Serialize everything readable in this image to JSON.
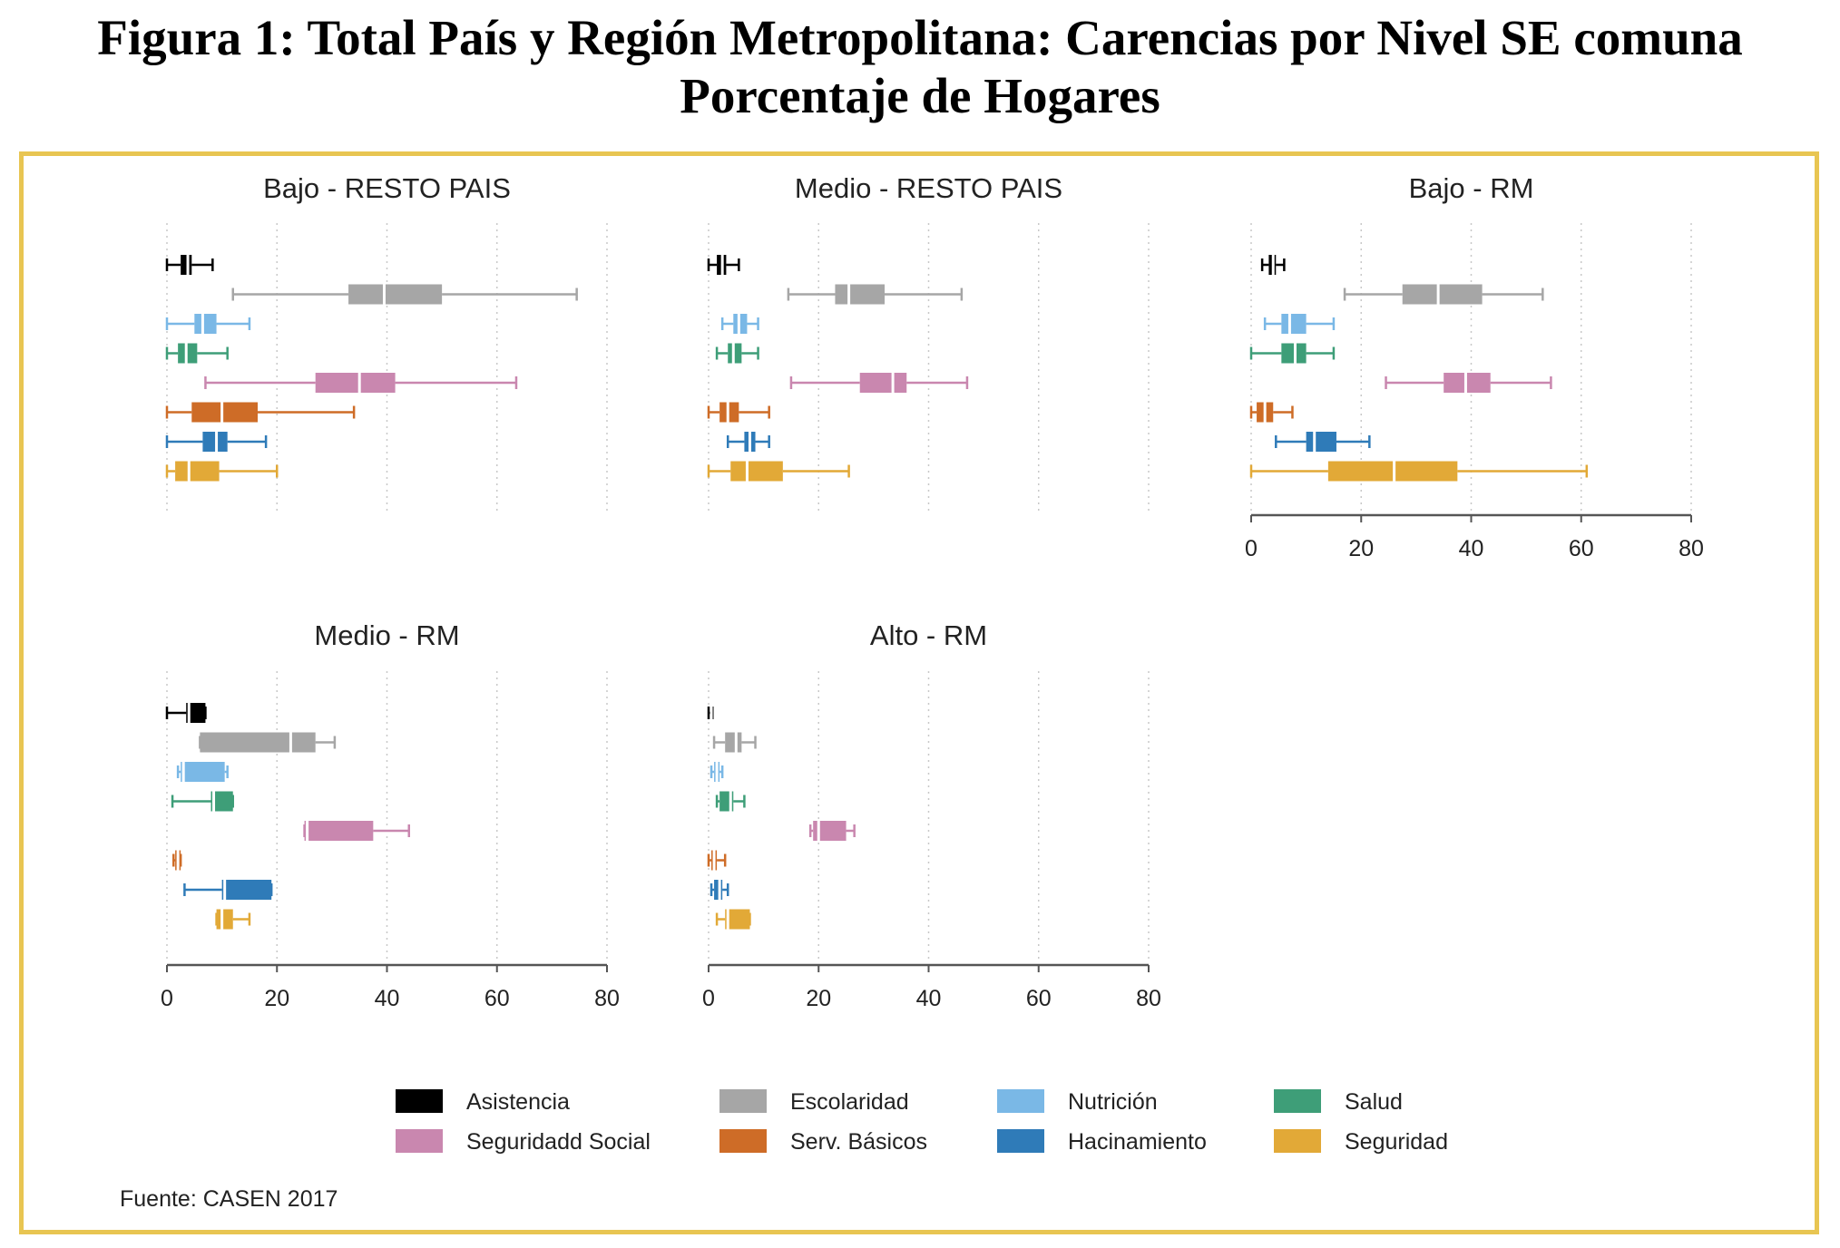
{
  "figure": {
    "title_line1": "Figura 1: Total País y Región Metropolitana: Carencias por Nivel SE comuna",
    "title_line2": "Porcentaje de Hogares",
    "source": "Fuente: CASEN 2017",
    "frame_color": "#E8C552"
  },
  "chart_data": {
    "type": "boxplot",
    "orientation": "horizontal",
    "xlim": [
      0,
      80
    ],
    "x_ticks": [
      0,
      20,
      40,
      60,
      80
    ],
    "grid": "vertical dotted",
    "legend_position": "bottom",
    "series": [
      {
        "name": "Asistencia",
        "color": "#000000"
      },
      {
        "name": "Escolaridad",
        "color": "#A6A6A6"
      },
      {
        "name": "Nutrición",
        "color": "#7AB8E6"
      },
      {
        "name": "Salud",
        "color": "#3E9E78"
      },
      {
        "name": "Seguridadd Social",
        "color": "#C987AF"
      },
      {
        "name": "Serv. Básicos",
        "color": "#CE6C27"
      },
      {
        "name": "Hacinamiento",
        "color": "#2F7BB8"
      },
      {
        "name": "Seguridad",
        "color": "#E2A937"
      }
    ],
    "legend_order": [
      "Asistencia",
      "Escolaridad",
      "Nutrición",
      "Salud",
      "Seguridadd Social",
      "Serv. Básicos",
      "Hacinamiento",
      "Seguridad"
    ],
    "panels": [
      {
        "title": "Bajo - RESTO PAIS",
        "show_axis": false,
        "boxes": [
          [
            0,
            2.5,
            3.8,
            4.5,
            8.3
          ],
          [
            12,
            33,
            39.5,
            50,
            74.5
          ],
          [
            0,
            5,
            6.5,
            9,
            15
          ],
          [
            0,
            2,
            3.5,
            5.5,
            11
          ],
          [
            7,
            27,
            35,
            41.5,
            63.5
          ],
          [
            0,
            4.5,
            10,
            16.5,
            34
          ],
          [
            0,
            6.5,
            9,
            11,
            18
          ],
          [
            0,
            1.5,
            4,
            9.5,
            20
          ]
        ]
      },
      {
        "title": "Medio - RESTO PAIS",
        "show_axis": false,
        "boxes": [
          [
            0,
            1.5,
            2.5,
            3.2,
            5.5
          ],
          [
            14.5,
            23,
            25.5,
            32,
            46
          ],
          [
            2.5,
            4.5,
            5.5,
            7,
            9
          ],
          [
            1.5,
            3.5,
            4.5,
            6,
            9
          ],
          [
            15,
            27.5,
            33.5,
            36,
            47
          ],
          [
            0,
            2,
            3.5,
            5.5,
            11
          ],
          [
            3.5,
            6.5,
            7.5,
            8.5,
            11
          ],
          [
            0,
            4,
            7,
            13.5,
            25.5
          ]
        ]
      },
      {
        "title": "Bajo - RM",
        "show_axis": true,
        "boxes": [
          [
            2,
            3.2,
            4,
            4.5,
            6
          ],
          [
            17,
            27.5,
            34,
            42,
            53
          ],
          [
            2.5,
            5.5,
            7,
            10,
            15
          ],
          [
            0,
            5.5,
            8,
            10,
            15
          ],
          [
            24.5,
            35,
            39,
            43.5,
            54.5
          ],
          [
            0,
            1,
            2.5,
            4,
            7.5
          ],
          [
            4.5,
            10,
            11.5,
            15.5,
            21.5
          ],
          [
            0,
            14,
            26,
            37.5,
            61
          ]
        ]
      },
      {
        "title": "Medio - RM",
        "show_axis": true,
        "boxes": [
          [
            0,
            3.5,
            4,
            7,
            7
          ],
          [
            6,
            6,
            22.5,
            27,
            30.5
          ],
          [
            2,
            2.5,
            3,
            10.5,
            11
          ],
          [
            1,
            8,
            8.5,
            12,
            12
          ],
          [
            25,
            25,
            25.5,
            37.5,
            44
          ],
          [
            1.2,
            1.5,
            2,
            2.5,
            2.5
          ],
          [
            3.2,
            10,
            10.5,
            19,
            19
          ],
          [
            9,
            9,
            10,
            12,
            15
          ]
        ]
      },
      {
        "title": "Alto - RM",
        "show_axis": true,
        "boxes": [
          [
            0,
            0.4,
            0.5,
            0.6,
            0.7
          ],
          [
            1,
            3,
            5,
            6,
            8.5
          ],
          [
            0.5,
            1,
            1.5,
            2,
            2.5
          ],
          [
            1.5,
            2,
            4,
            4.5,
            6.5
          ],
          [
            18.5,
            19,
            20,
            25,
            26.5
          ],
          [
            0,
            0.5,
            1,
            1.5,
            3
          ],
          [
            0.5,
            1,
            2,
            2.5,
            3.5
          ],
          [
            1.5,
            3,
            3.5,
            7.5,
            7.5
          ]
        ]
      }
    ]
  }
}
